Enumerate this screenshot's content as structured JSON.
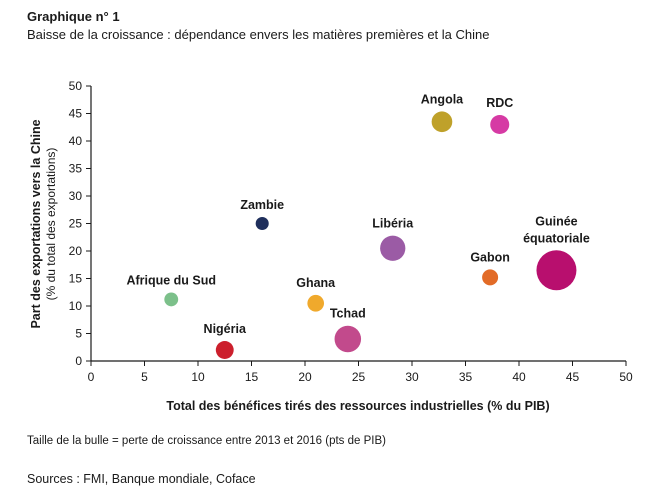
{
  "figure": {
    "title": "Graphique n° 1",
    "subtitle": "Baisse de la croissance : dépendance envers les matières premières et la Chine",
    "note": "Taille de la bulle = perte de croissance entre 2013 et 2016 (pts de PIB)",
    "source": "Sources : FMI, Banque mondiale, Coface"
  },
  "chart_data": {
    "type": "scatter",
    "xlabel": "Total des bénéfices tirés des ressources industrielles (% du PIB)",
    "ylabel": "Part des exportations vers la Chine",
    "ylabel_sub": "(% du total des exportations)",
    "xlim": [
      0,
      50
    ],
    "ylim": [
      0,
      50
    ],
    "xticks": [
      0,
      5,
      10,
      15,
      20,
      25,
      30,
      35,
      40,
      45,
      50
    ],
    "yticks": [
      0,
      5,
      10,
      15,
      20,
      25,
      30,
      35,
      40,
      45,
      50
    ],
    "grid": false,
    "points": [
      {
        "label": "Angola",
        "x": 32.8,
        "y": 43.5,
        "size": 2.0,
        "color": "#bfa12a"
      },
      {
        "label": "RDC",
        "x": 38.2,
        "y": 43.0,
        "size": 1.7,
        "color": "#d63aa4"
      },
      {
        "label": "Zambie",
        "x": 16.0,
        "y": 25.0,
        "size": 0.8,
        "color": "#1f2f5c"
      },
      {
        "label": "Libéria",
        "x": 28.2,
        "y": 20.5,
        "size": 3.0,
        "color": "#9b5ba5"
      },
      {
        "label": "Guinée équatoriale",
        "label_lines": [
          "Guinée",
          "équatoriale"
        ],
        "x": 43.5,
        "y": 16.5,
        "size": 7.5,
        "color": "#b80f6e"
      },
      {
        "label": "Gabon",
        "x": 37.3,
        "y": 15.2,
        "size": 1.2,
        "color": "#e26b27"
      },
      {
        "label": "Afrique du Sud",
        "x": 7.5,
        "y": 11.2,
        "size": 0.9,
        "color": "#7cc08a"
      },
      {
        "label": "Ghana",
        "x": 21.0,
        "y": 10.5,
        "size": 1.3,
        "color": "#f0a92c"
      },
      {
        "label": "Tchad",
        "x": 24.0,
        "y": 4.0,
        "size": 3.3,
        "color": "#c24a8c"
      },
      {
        "label": "Nigéria",
        "x": 12.5,
        "y": 2.0,
        "size": 1.5,
        "color": "#cc1f2c"
      }
    ]
  }
}
